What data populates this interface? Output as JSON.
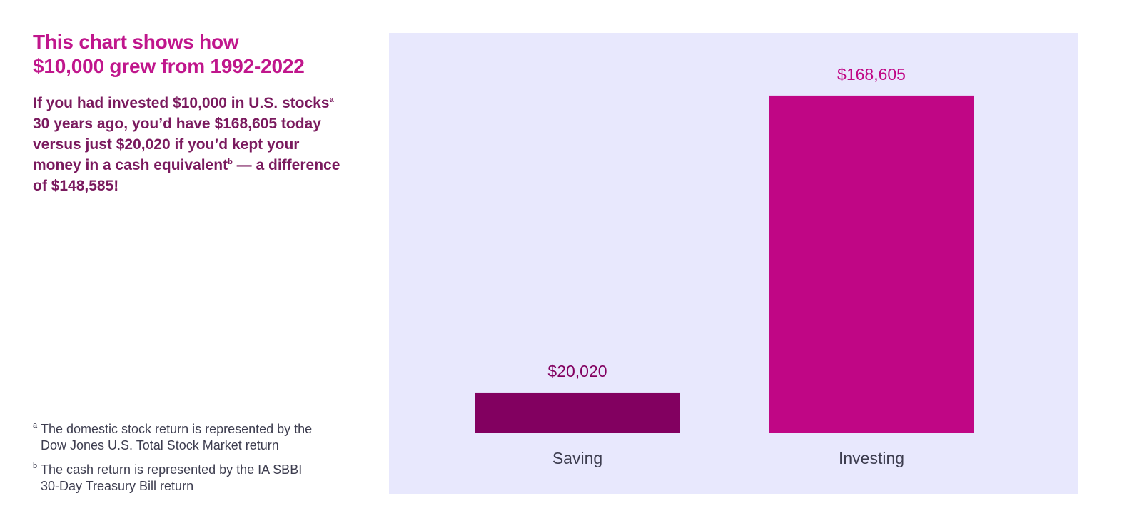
{
  "headline": {
    "line1": "This chart shows how",
    "line2": "$10,000 grew from 1992-2022"
  },
  "summary": {
    "part1": "If you had invested $10,000 in U.S. stocks",
    "marker_a": "a",
    "part2": " 30 years ago, you’d have $168,605 today versus just $20,020 if you’d kept your money in a cash equivalent",
    "marker_b": "b",
    "part3": " — a difference of $148,585!"
  },
  "footnotes": [
    {
      "marker": "a",
      "line1": "The domestic stock return is represented by the",
      "line2": "Dow Jones U.S. Total Stock Market return"
    },
    {
      "marker": "b",
      "line1": "The cash return is represented by the IA SBBI",
      "line2": "30-Day Treasury Bill return"
    }
  ],
  "colors": {
    "headline": "#c0168c",
    "summary": "#7a1a5e",
    "panel_background": "#e8e8fd",
    "saving_bar": "#820060",
    "investing_bar": "#c00685",
    "baseline": "#6b6b7b",
    "category_text": "#3d3d4f"
  },
  "chart_data": {
    "type": "bar",
    "categories": [
      "Saving",
      "Investing"
    ],
    "values": [
      20020,
      168605
    ],
    "data_labels": [
      "$20,020",
      "$168,605"
    ],
    "bar_colors": [
      "#820060",
      "#c00685"
    ],
    "ylim": [
      0,
      200000
    ],
    "grid": false,
    "legend": "none"
  }
}
